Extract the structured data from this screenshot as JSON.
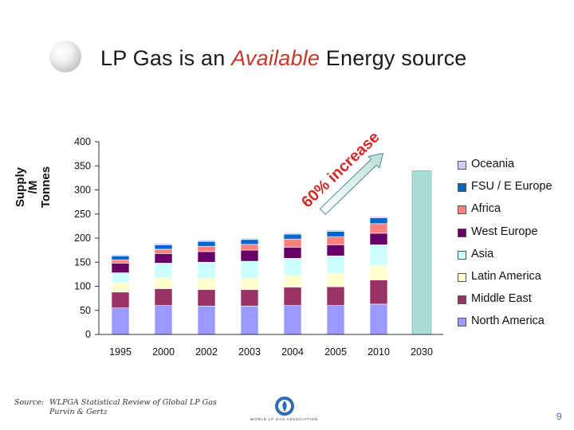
{
  "slide": {
    "title_before": "LP Gas is an ",
    "title_highlight": "Available",
    "title_after": " Energy source",
    "source_label": "Source:",
    "source_line1": "WLPGA Statistical Review of Global LP Gas",
    "source_line2": "Purvin & Gertz",
    "page_number": "9",
    "logo_text": "WORLD LP GAS ASSOCIATION",
    "colors": {
      "accent": "#c0392b",
      "page_number": "#3b6fb8"
    }
  },
  "chart_data": {
    "type": "bar",
    "stacked": true,
    "ylabel_line1": "Supply",
    "ylabel_line2": "/M",
    "ylabel_line3": "Tonnes",
    "ylim": [
      0,
      400
    ],
    "yticks": [
      0,
      50,
      100,
      150,
      200,
      250,
      300,
      350,
      400
    ],
    "categories": [
      "1995",
      "2000",
      "2002",
      "2003",
      "2004",
      "2005",
      "2010",
      "2030"
    ],
    "legend_position": "right",
    "grid": false,
    "series": [
      {
        "name": "North America",
        "color": "#9999ff",
        "values": [
          55,
          60,
          59,
          59,
          60,
          60,
          63,
          null
        ]
      },
      {
        "name": "Middle East",
        "color": "#993366",
        "values": [
          33,
          35,
          34,
          34,
          38,
          39,
          50,
          null
        ]
      },
      {
        "name": "Latin America",
        "color": "#ffffcc",
        "values": [
          20,
          23,
          24,
          24,
          25,
          28,
          30,
          null
        ]
      },
      {
        "name": "Asia",
        "color": "#ccffff",
        "values": [
          20,
          30,
          33,
          35,
          35,
          36,
          43,
          null
        ]
      },
      {
        "name": "West Europe",
        "color": "#660066",
        "values": [
          20,
          20,
          22,
          23,
          23,
          23,
          24,
          null
        ]
      },
      {
        "name": "Africa",
        "color": "#ff8080",
        "values": [
          7,
          9,
          11,
          12,
          17,
          17,
          20,
          null
        ]
      },
      {
        "name": "FSU / E Europe",
        "color": "#0066cc",
        "values": [
          8,
          9,
          10,
          10,
          10,
          11,
          12,
          null
        ]
      },
      {
        "name": "Oceania",
        "color": "#ccccff",
        "values": [
          3,
          3,
          3,
          3,
          3,
          3,
          3,
          null
        ]
      }
    ],
    "total_only": {
      "category": "2030",
      "value": 340,
      "color": "#a9ddd6"
    },
    "annotation": {
      "text": "60% increase",
      "color": "#d22a2a"
    }
  }
}
